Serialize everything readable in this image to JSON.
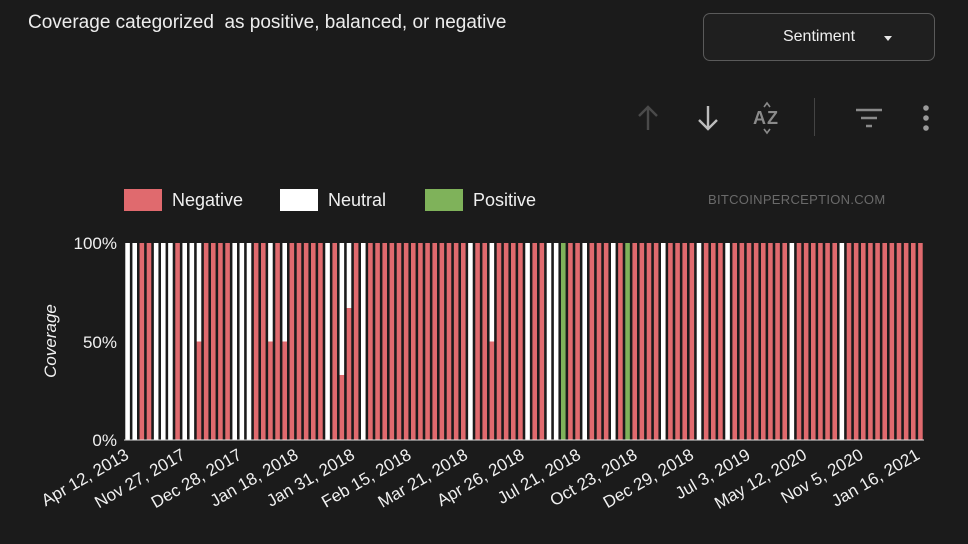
{
  "header": {
    "title": "Coverage categorized  as positive, balanced, or negative",
    "dropdown_value": "Sentiment",
    "watermark": "BITCOINPERCEPTION.COM"
  },
  "toolbar": {
    "sort_ascending_icon": "arrow-up-icon",
    "sort_descending_icon": "arrow-down-icon",
    "sort_az_icon": "sort-az-icon",
    "filter_icon": "filter-icon",
    "more_icon": "more-vert-icon"
  },
  "colors": {
    "negative": "#e06a6e",
    "neutral": "#ffffff",
    "positive": "#7fb25a",
    "background": "#1b1b1b"
  },
  "chart_data": {
    "type": "bar",
    "stacked": true,
    "title": "Coverage categorized  as positive, balanced, or negative",
    "ylabel": "Coverage",
    "xlabel": "",
    "ylim": [
      0,
      100
    ],
    "yticks": [
      "0%",
      "50%",
      "100%"
    ],
    "legend": [
      {
        "key": "negative",
        "label": "Negative"
      },
      {
        "key": "neutral",
        "label": "Neutral"
      },
      {
        "key": "positive",
        "label": "Positive"
      }
    ],
    "legend_position": "top-left",
    "xtick_labels": [
      "Apr 12, 2013",
      "Nov 27, 2017",
      "Dec 28, 2017",
      "Jan 18, 2018",
      "Jan 31, 2018",
      "Feb 15, 2018",
      "Mar 21, 2018",
      "Apr 26, 2018",
      "Jul 21, 2018",
      "Oct 23, 2018",
      "Dec 29, 2018",
      "Jul 3, 2019",
      "May 12, 2020",
      "Nov 5, 2020",
      "Jan 16, 2021"
    ],
    "bars": [
      {
        "neg": 0,
        "neu": 100,
        "pos": 0
      },
      {
        "neg": 0,
        "neu": 100,
        "pos": 0
      },
      {
        "neg": 100,
        "neu": 0,
        "pos": 0
      },
      {
        "neg": 100,
        "neu": 0,
        "pos": 0
      },
      {
        "neg": 0,
        "neu": 100,
        "pos": 0
      },
      {
        "neg": 0,
        "neu": 100,
        "pos": 0
      },
      {
        "neg": 0,
        "neu": 100,
        "pos": 0
      },
      {
        "neg": 100,
        "neu": 0,
        "pos": 0
      },
      {
        "neg": 0,
        "neu": 100,
        "pos": 0
      },
      {
        "neg": 0,
        "neu": 100,
        "pos": 0
      },
      {
        "neg": 50,
        "neu": 50,
        "pos": 0
      },
      {
        "neg": 100,
        "neu": 0,
        "pos": 0
      },
      {
        "neg": 100,
        "neu": 0,
        "pos": 0
      },
      {
        "neg": 100,
        "neu": 0,
        "pos": 0
      },
      {
        "neg": 100,
        "neu": 0,
        "pos": 0
      },
      {
        "neg": 0,
        "neu": 100,
        "pos": 0
      },
      {
        "neg": 0,
        "neu": 100,
        "pos": 0
      },
      {
        "neg": 0,
        "neu": 100,
        "pos": 0
      },
      {
        "neg": 100,
        "neu": 0,
        "pos": 0
      },
      {
        "neg": 100,
        "neu": 0,
        "pos": 0
      },
      {
        "neg": 50,
        "neu": 50,
        "pos": 0
      },
      {
        "neg": 100,
        "neu": 0,
        "pos": 0
      },
      {
        "neg": 50,
        "neu": 50,
        "pos": 0
      },
      {
        "neg": 100,
        "neu": 0,
        "pos": 0
      },
      {
        "neg": 100,
        "neu": 0,
        "pos": 0
      },
      {
        "neg": 100,
        "neu": 0,
        "pos": 0
      },
      {
        "neg": 100,
        "neu": 0,
        "pos": 0
      },
      {
        "neg": 100,
        "neu": 0,
        "pos": 0
      },
      {
        "neg": 0,
        "neu": 100,
        "pos": 0
      },
      {
        "neg": 100,
        "neu": 0,
        "pos": 0
      },
      {
        "neg": 33,
        "neu": 67,
        "pos": 0
      },
      {
        "neg": 67,
        "neu": 33,
        "pos": 0
      },
      {
        "neg": 100,
        "neu": 0,
        "pos": 0
      },
      {
        "neg": 0,
        "neu": 100,
        "pos": 0
      },
      {
        "neg": 100,
        "neu": 0,
        "pos": 0
      },
      {
        "neg": 100,
        "neu": 0,
        "pos": 0
      },
      {
        "neg": 100,
        "neu": 0,
        "pos": 0
      },
      {
        "neg": 100,
        "neu": 0,
        "pos": 0
      },
      {
        "neg": 100,
        "neu": 0,
        "pos": 0
      },
      {
        "neg": 100,
        "neu": 0,
        "pos": 0
      },
      {
        "neg": 100,
        "neu": 0,
        "pos": 0
      },
      {
        "neg": 100,
        "neu": 0,
        "pos": 0
      },
      {
        "neg": 100,
        "neu": 0,
        "pos": 0
      },
      {
        "neg": 100,
        "neu": 0,
        "pos": 0
      },
      {
        "neg": 100,
        "neu": 0,
        "pos": 0
      },
      {
        "neg": 100,
        "neu": 0,
        "pos": 0
      },
      {
        "neg": 100,
        "neu": 0,
        "pos": 0
      },
      {
        "neg": 100,
        "neu": 0,
        "pos": 0
      },
      {
        "neg": 0,
        "neu": 100,
        "pos": 0
      },
      {
        "neg": 100,
        "neu": 0,
        "pos": 0
      },
      {
        "neg": 100,
        "neu": 0,
        "pos": 0
      },
      {
        "neg": 50,
        "neu": 50,
        "pos": 0
      },
      {
        "neg": 100,
        "neu": 0,
        "pos": 0
      },
      {
        "neg": 100,
        "neu": 0,
        "pos": 0
      },
      {
        "neg": 100,
        "neu": 0,
        "pos": 0
      },
      {
        "neg": 100,
        "neu": 0,
        "pos": 0
      },
      {
        "neg": 0,
        "neu": 100,
        "pos": 0
      },
      {
        "neg": 100,
        "neu": 0,
        "pos": 0
      },
      {
        "neg": 100,
        "neu": 0,
        "pos": 0
      },
      {
        "neg": 0,
        "neu": 100,
        "pos": 0
      },
      {
        "neg": 0,
        "neu": 100,
        "pos": 0
      },
      {
        "neg": 0,
        "neu": 0,
        "pos": 100
      },
      {
        "neg": 100,
        "neu": 0,
        "pos": 0
      },
      {
        "neg": 100,
        "neu": 0,
        "pos": 0
      },
      {
        "neg": 0,
        "neu": 100,
        "pos": 0
      },
      {
        "neg": 100,
        "neu": 0,
        "pos": 0
      },
      {
        "neg": 100,
        "neu": 0,
        "pos": 0
      },
      {
        "neg": 100,
        "neu": 0,
        "pos": 0
      },
      {
        "neg": 0,
        "neu": 100,
        "pos": 0
      },
      {
        "neg": 100,
        "neu": 0,
        "pos": 0
      },
      {
        "neg": 0,
        "neu": 0,
        "pos": 100
      },
      {
        "neg": 100,
        "neu": 0,
        "pos": 0
      },
      {
        "neg": 100,
        "neu": 0,
        "pos": 0
      },
      {
        "neg": 100,
        "neu": 0,
        "pos": 0
      },
      {
        "neg": 100,
        "neu": 0,
        "pos": 0
      },
      {
        "neg": 0,
        "neu": 100,
        "pos": 0
      },
      {
        "neg": 100,
        "neu": 0,
        "pos": 0
      },
      {
        "neg": 100,
        "neu": 0,
        "pos": 0
      },
      {
        "neg": 100,
        "neu": 0,
        "pos": 0
      },
      {
        "neg": 100,
        "neu": 0,
        "pos": 0
      },
      {
        "neg": 0,
        "neu": 100,
        "pos": 0
      },
      {
        "neg": 100,
        "neu": 0,
        "pos": 0
      },
      {
        "neg": 100,
        "neu": 0,
        "pos": 0
      },
      {
        "neg": 100,
        "neu": 0,
        "pos": 0
      },
      {
        "neg": 0,
        "neu": 100,
        "pos": 0
      },
      {
        "neg": 100,
        "neu": 0,
        "pos": 0
      },
      {
        "neg": 100,
        "neu": 0,
        "pos": 0
      },
      {
        "neg": 100,
        "neu": 0,
        "pos": 0
      },
      {
        "neg": 100,
        "neu": 0,
        "pos": 0
      },
      {
        "neg": 100,
        "neu": 0,
        "pos": 0
      },
      {
        "neg": 100,
        "neu": 0,
        "pos": 0
      },
      {
        "neg": 100,
        "neu": 0,
        "pos": 0
      },
      {
        "neg": 100,
        "neu": 0,
        "pos": 0
      },
      {
        "neg": 0,
        "neu": 100,
        "pos": 0
      },
      {
        "neg": 100,
        "neu": 0,
        "pos": 0
      },
      {
        "neg": 100,
        "neu": 0,
        "pos": 0
      },
      {
        "neg": 100,
        "neu": 0,
        "pos": 0
      },
      {
        "neg": 100,
        "neu": 0,
        "pos": 0
      },
      {
        "neg": 100,
        "neu": 0,
        "pos": 0
      },
      {
        "neg": 100,
        "neu": 0,
        "pos": 0
      },
      {
        "neg": 0,
        "neu": 100,
        "pos": 0
      },
      {
        "neg": 100,
        "neu": 0,
        "pos": 0
      },
      {
        "neg": 100,
        "neu": 0,
        "pos": 0
      },
      {
        "neg": 100,
        "neu": 0,
        "pos": 0
      },
      {
        "neg": 100,
        "neu": 0,
        "pos": 0
      },
      {
        "neg": 100,
        "neu": 0,
        "pos": 0
      },
      {
        "neg": 100,
        "neu": 0,
        "pos": 0
      },
      {
        "neg": 100,
        "neu": 0,
        "pos": 0
      },
      {
        "neg": 100,
        "neu": 0,
        "pos": 0
      },
      {
        "neg": 100,
        "neu": 0,
        "pos": 0
      },
      {
        "neg": 100,
        "neu": 0,
        "pos": 0
      },
      {
        "neg": 100,
        "neu": 0,
        "pos": 0
      }
    ]
  }
}
